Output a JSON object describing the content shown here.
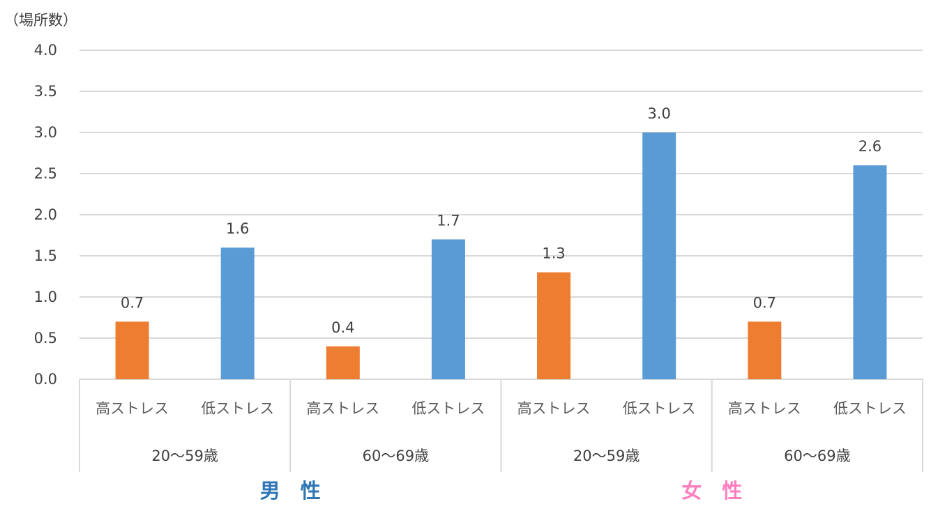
{
  "chart_data": {
    "type": "bar",
    "ylabel": "（場所数）",
    "ylim": [
      0,
      4
    ],
    "yticks": [
      "0.0",
      "0.5",
      "1.0",
      "1.5",
      "2.0",
      "2.5",
      "3.0",
      "3.5",
      "4.0"
    ],
    "grid": true,
    "bars": [
      {
        "category": "高ストレス",
        "age_group": "20〜59歳",
        "sex": "男　性",
        "value": 0.7,
        "label": "0.7",
        "color": "#ED7D31"
      },
      {
        "category": "低ストレス",
        "age_group": "20〜59歳",
        "sex": "男　性",
        "value": 1.6,
        "label": "1.6",
        "color": "#5B9BD5"
      },
      {
        "category": "高ストレス",
        "age_group": "60〜69歳",
        "sex": "男　性",
        "value": 0.4,
        "label": "0.4",
        "color": "#ED7D31"
      },
      {
        "category": "低ストレス",
        "age_group": "60〜69歳",
        "sex": "男　性",
        "value": 1.7,
        "label": "1.7",
        "color": "#5B9BD5"
      },
      {
        "category": "高ストレス",
        "age_group": "20〜59歳",
        "sex": "女　性",
        "value": 1.3,
        "label": "1.3",
        "color": "#ED7D31"
      },
      {
        "category": "低ストレス",
        "age_group": "20〜59歳",
        "sex": "女　性",
        "value": 3.0,
        "label": "3.0",
        "color": "#5B9BD5"
      },
      {
        "category": "高ストレス",
        "age_group": "60〜69歳",
        "sex": "女　性",
        "value": 0.7,
        "label": "0.7",
        "color": "#ED7D31"
      },
      {
        "category": "低ストレス",
        "age_group": "60〜69歳",
        "sex": "女　性",
        "value": 2.6,
        "label": "2.6",
        "color": "#5B9BD5"
      }
    ],
    "age_groups": [
      "20〜59歳",
      "60〜69歳",
      "20〜59歳",
      "60〜69歳"
    ],
    "sex_groups": [
      {
        "label": "男　性",
        "color": "#2E75B6"
      },
      {
        "label": "女　性",
        "color": "#FF7FBF"
      }
    ]
  }
}
